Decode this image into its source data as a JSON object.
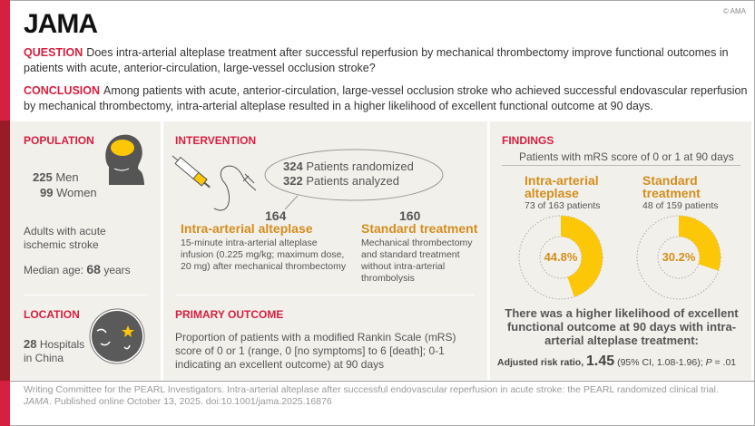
{
  "header": {
    "logo": "JAMA",
    "copyright": "© AMA",
    "question_label": "QUESTION",
    "question": "Does intra-arterial alteplase treatment after successful reperfusion by mechanical thrombectomy improve functional outcomes in patients with acute, anterior-circulation, large-vessel occlusion stroke?",
    "conclusion_label": "CONCLUSION",
    "conclusion": "Among patients with acute, anterior-circulation, large-vessel occlusion stroke who achieved successful endovascular reperfusion by mechanical thrombectomy, intra-arterial alteplase resulted in a higher likelihood of excellent functional outcome at 90 days."
  },
  "population": {
    "title": "POPULATION",
    "men_n": "225",
    "men": "Men",
    "women_n": "99",
    "women": "Women",
    "desc": "Adults with acute ischemic stroke",
    "age_label": "Median age:",
    "age": "68",
    "age_unit": "years"
  },
  "location": {
    "title": "LOCATION",
    "n": "28",
    "text1": "Hospitals",
    "text2": "in China"
  },
  "intervention": {
    "title": "INTERVENTION",
    "randomized_n": "324",
    "randomized": "Patients randomized",
    "analyzed_n": "322",
    "analyzed": "Patients analyzed",
    "arms": [
      {
        "n": "164",
        "name": "Intra-arterial alteplase",
        "desc": "15-minute intra-arterial alteplase infusion (0.225 mg/kg; maximum dose, 20 mg) after mechanical thrombectomy"
      },
      {
        "n": "160",
        "name": "Standard treatment",
        "desc": "Mechanical thrombectomy and standard treatment without intra-arterial thrombolysis"
      }
    ]
  },
  "outcome": {
    "title": "PRIMARY OUTCOME",
    "text": "Proportion of patients with a modified Rankin Scale (mRS) score of 0 or 1 (range, 0 [no symptoms] to 6 [death]; 0-1 indicating an excellent outcome) at 90 days"
  },
  "findings": {
    "title": "FINDINGS",
    "subtitle": "Patients with mRS score of 0 or 1 at 90 days",
    "groups": [
      {
        "name1": "Intra-arterial",
        "name2": "alteplase",
        "count": "73 of 163 patients",
        "pct_label": "44.8%",
        "pct": 44.8
      },
      {
        "name1": "Standard",
        "name2": "treatment",
        "count": "48 of 159 patients",
        "pct_label": "30.2%",
        "pct": 30.2
      }
    ],
    "summary": "There was a higher likelihood of excellent functional outcome at 90 days with intra-arterial alteplase treatment:",
    "rr_label": "Adjusted risk ratio,",
    "rr": "1.45",
    "rr_ci": "(95% CI, 1.08-1.96);",
    "p_label": "P",
    "p_val": "= .01"
  },
  "citation": {
    "line1": "Writing Committee for the PEARL Investigators. Intra-arterial alteplase after successful endovascular reperfusion in acute stroke: the PEARL randomized clinical trial.",
    "journal": "JAMA",
    "line2": ". Published online October 13, 2025. doi:10.1001/jama.2025.16876"
  },
  "colors": {
    "red": "#d71f3f",
    "gold": "#fbc707",
    "gold_text": "#d38e1e",
    "panel": "#f2f0eb"
  }
}
